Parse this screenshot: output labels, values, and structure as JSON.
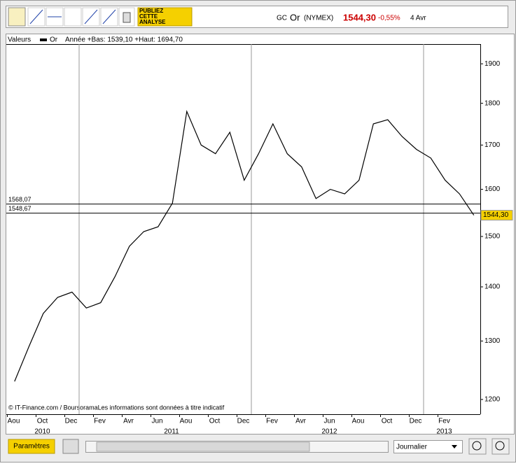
{
  "header": {
    "symbol": "GC",
    "name": "Or",
    "market": "(NYMEX)",
    "price": "1544,30",
    "change": "-0,55%",
    "date": "4 Avr"
  },
  "toolbar": {
    "publish": "PUBLIEZ CETTE ANALYSE"
  },
  "legend": {
    "label": "Valeurs",
    "series": "Or",
    "stats": "Année +Bas: 1539,10 +Haut: 1694,70"
  },
  "footer": {
    "source": "© IT-Finance.com / BoursoramaLes informations sont données à titre indicatif",
    "settings": "Paramètres",
    "period": "Journalier"
  },
  "chart_data": {
    "type": "line",
    "log_scale": true,
    "color": "#000000",
    "x": [
      "2010-08",
      "2010-09",
      "2010-10",
      "2010-11",
      "2010-12",
      "2011-01",
      "2011-02",
      "2011-03",
      "2011-04",
      "2011-05",
      "2011-06",
      "2011-07",
      "2011-08",
      "2011-09",
      "2011-10",
      "2011-11",
      "2011-12",
      "2012-01",
      "2012-02",
      "2012-03",
      "2012-04",
      "2012-05",
      "2012-06",
      "2012-07",
      "2012-08",
      "2012-09",
      "2012-10",
      "2012-11",
      "2012-12",
      "2013-01",
      "2013-02",
      "2013-03",
      "2013-04"
    ],
    "series": [
      {
        "name": "Or",
        "color": "#000000",
        "values": [
          1230,
          1290,
          1350,
          1380,
          1390,
          1360,
          1370,
          1420,
          1480,
          1510,
          1520,
          1570,
          1780,
          1700,
          1680,
          1730,
          1620,
          1680,
          1750,
          1680,
          1650,
          1580,
          1600,
          1590,
          1620,
          1750,
          1760,
          1720,
          1690,
          1670,
          1620,
          1590,
          1544.3
        ]
      }
    ],
    "ylim": [
      1176,
      1952
    ],
    "yticks": [
      1200,
      1300,
      1400,
      1500,
      1600,
      1700,
      1800,
      1900
    ],
    "xticks": [
      {
        "value": "2010-08",
        "label": "Aou"
      },
      {
        "value": "2010-10",
        "label": "Oct"
      },
      {
        "value": "2010-12",
        "label": "Dec"
      },
      {
        "value": "2011-02",
        "label": "Fev"
      },
      {
        "value": "2011-04",
        "label": "Avr"
      },
      {
        "value": "2011-06",
        "label": "Jun"
      },
      {
        "value": "2011-08",
        "label": "Aou"
      },
      {
        "value": "2011-10",
        "label": "Oct"
      },
      {
        "value": "2011-12",
        "label": "Dec"
      },
      {
        "value": "2012-02",
        "label": "Fev"
      },
      {
        "value": "2012-04",
        "label": "Avr"
      },
      {
        "value": "2012-06",
        "label": "Jun"
      },
      {
        "value": "2012-08",
        "label": "Aou"
      },
      {
        "value": "2012-10",
        "label": "Oct"
      },
      {
        "value": "2012-12",
        "label": "Dec"
      },
      {
        "value": "2013-02",
        "label": "Fev"
      }
    ],
    "year_labels": [
      {
        "value": "2010-10",
        "label": "2010"
      },
      {
        "value": "2011-07",
        "label": "2011"
      },
      {
        "value": "2012-06",
        "label": "2012"
      },
      {
        "value": "2013-02",
        "label": "2013"
      }
    ],
    "xgrid": [
      "2011-01",
      "2012-01",
      "2013-01"
    ],
    "hlines": [
      {
        "value": 1568.07,
        "label": "1568,07"
      },
      {
        "value": 1548.67,
        "label": "1548,67"
      }
    ],
    "last_value": {
      "value": 1544.3,
      "label": "1544,30"
    }
  }
}
